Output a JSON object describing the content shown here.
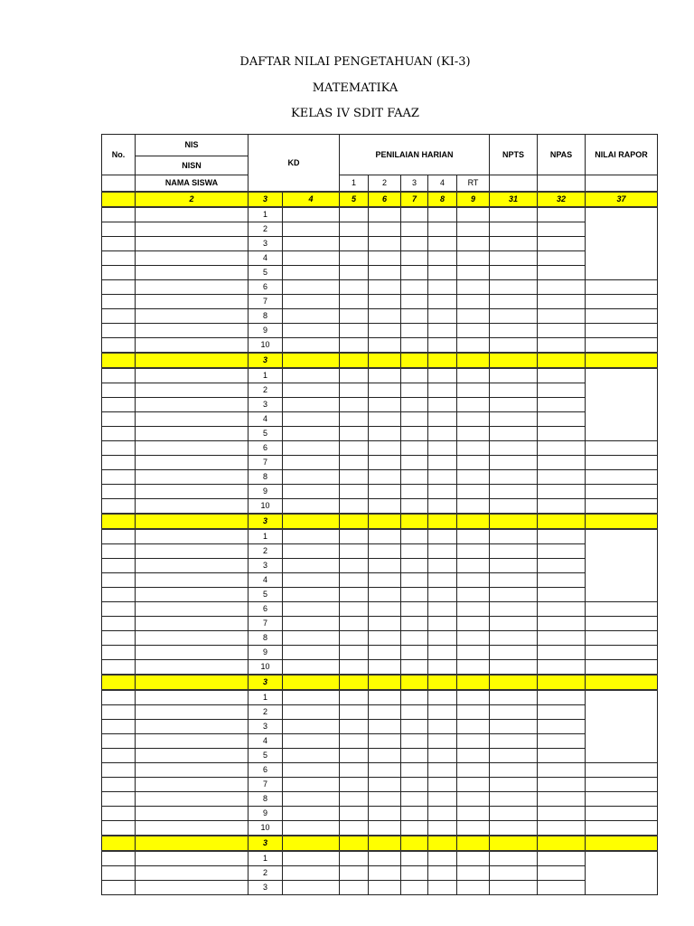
{
  "titles": [
    "DAFTAR NILAI PENGETAHUAN (KI-3)",
    "MATEMATIKA",
    "KELAS IV SDIT FAAZ"
  ],
  "header": {
    "no": "No.",
    "nis": "NIS",
    "nisn": "NISN",
    "nama": "NAMA SISWA",
    "kd": "KD",
    "ph": "PENILAIAN HARIAN",
    "ph_cols": [
      "1",
      "2",
      "3",
      "4",
      "RT"
    ],
    "npts": "NPTS",
    "npas": "NPAS",
    "rapor": "NILAI RAPOR"
  },
  "index_row": [
    "",
    "2",
    "3",
    "4",
    "5",
    "6",
    "7",
    "8",
    "9",
    "31",
    "32",
    "37"
  ],
  "block_kd": "3",
  "row_numbers": [
    "1",
    "2",
    "3",
    "4",
    "5",
    "6",
    "7",
    "8",
    "9",
    "10"
  ],
  "blocks": 4,
  "last_rows": [
    "1",
    "2",
    "3"
  ],
  "colors": {
    "highlight": "#ffff00"
  }
}
